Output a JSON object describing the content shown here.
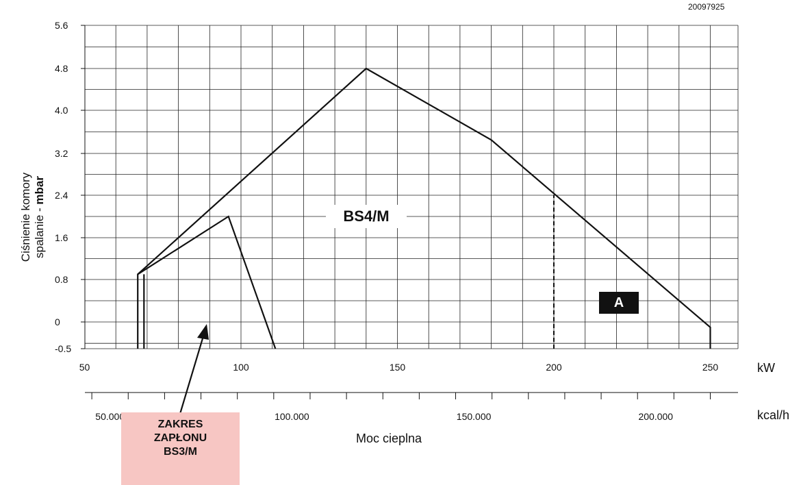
{
  "doc_code": "20097925",
  "y_axis_label": {
    "line1": "Ciśnienie komory",
    "line2_prefix": "spalanie - ",
    "line2_bold": "mbar"
  },
  "x_axis_title": "Moc cieplna",
  "unit_kw": "kW",
  "unit_kcal": "kcal/h",
  "model_label": "BS4/M",
  "zone_badge": "A",
  "ignition_callout": {
    "line1": "ZAKRES",
    "line2": "ZAPŁONU",
    "line3": "BS3/M"
  },
  "colors": {
    "line": "#111111",
    "callout_bg": "#f7c6c3",
    "badge_bg": "#111111"
  },
  "chart_data": {
    "type": "line",
    "title": "",
    "xlabel": "Moc cieplna",
    "ylabel": "Ciśnienie komory spalanie - mbar",
    "xlim": [
      50,
      260
    ],
    "ylim": [
      -0.5,
      5.6
    ],
    "x_ticks": [
      50,
      100,
      150,
      200,
      250
    ],
    "x_tick_labels": [
      "50",
      "100",
      "150",
      "200",
      "250"
    ],
    "y_ticks": [
      -0.5,
      0,
      0.8,
      1.6,
      2.4,
      3.2,
      4.0,
      4.8,
      5.6
    ],
    "y_tick_labels": [
      "-0.5",
      "0",
      "0.8",
      "1.6",
      "2.4",
      "3.2",
      "4.0",
      "4.8",
      "5.6"
    ],
    "secondary_x_axis": {
      "unit": "kcal/h",
      "tick_values": [
        50000,
        100000,
        150000,
        200000
      ],
      "tick_labels": [
        "50.000",
        "100.000",
        "150.000",
        "200.000"
      ]
    },
    "grid": true,
    "series": [
      {
        "name": "BS4/M",
        "style": "solid",
        "x": [
          67,
          67,
          140,
          180,
          250,
          250
        ],
        "y": [
          -0.5,
          0.9,
          4.8,
          3.45,
          -0.1,
          -0.5
        ]
      },
      {
        "name": "BS3/M",
        "style": "solid",
        "x": [
          67,
          96,
          111
        ],
        "y": [
          0.9,
          2.0,
          -0.5
        ]
      },
      {
        "name": "",
        "style": "solid",
        "x": [
          69,
          69
        ],
        "y": [
          -0.5,
          0.9
        ]
      },
      {
        "name": "A",
        "style": "dashed",
        "x": [
          200,
          200
        ],
        "y": [
          -0.5,
          2.4
        ]
      }
    ]
  }
}
